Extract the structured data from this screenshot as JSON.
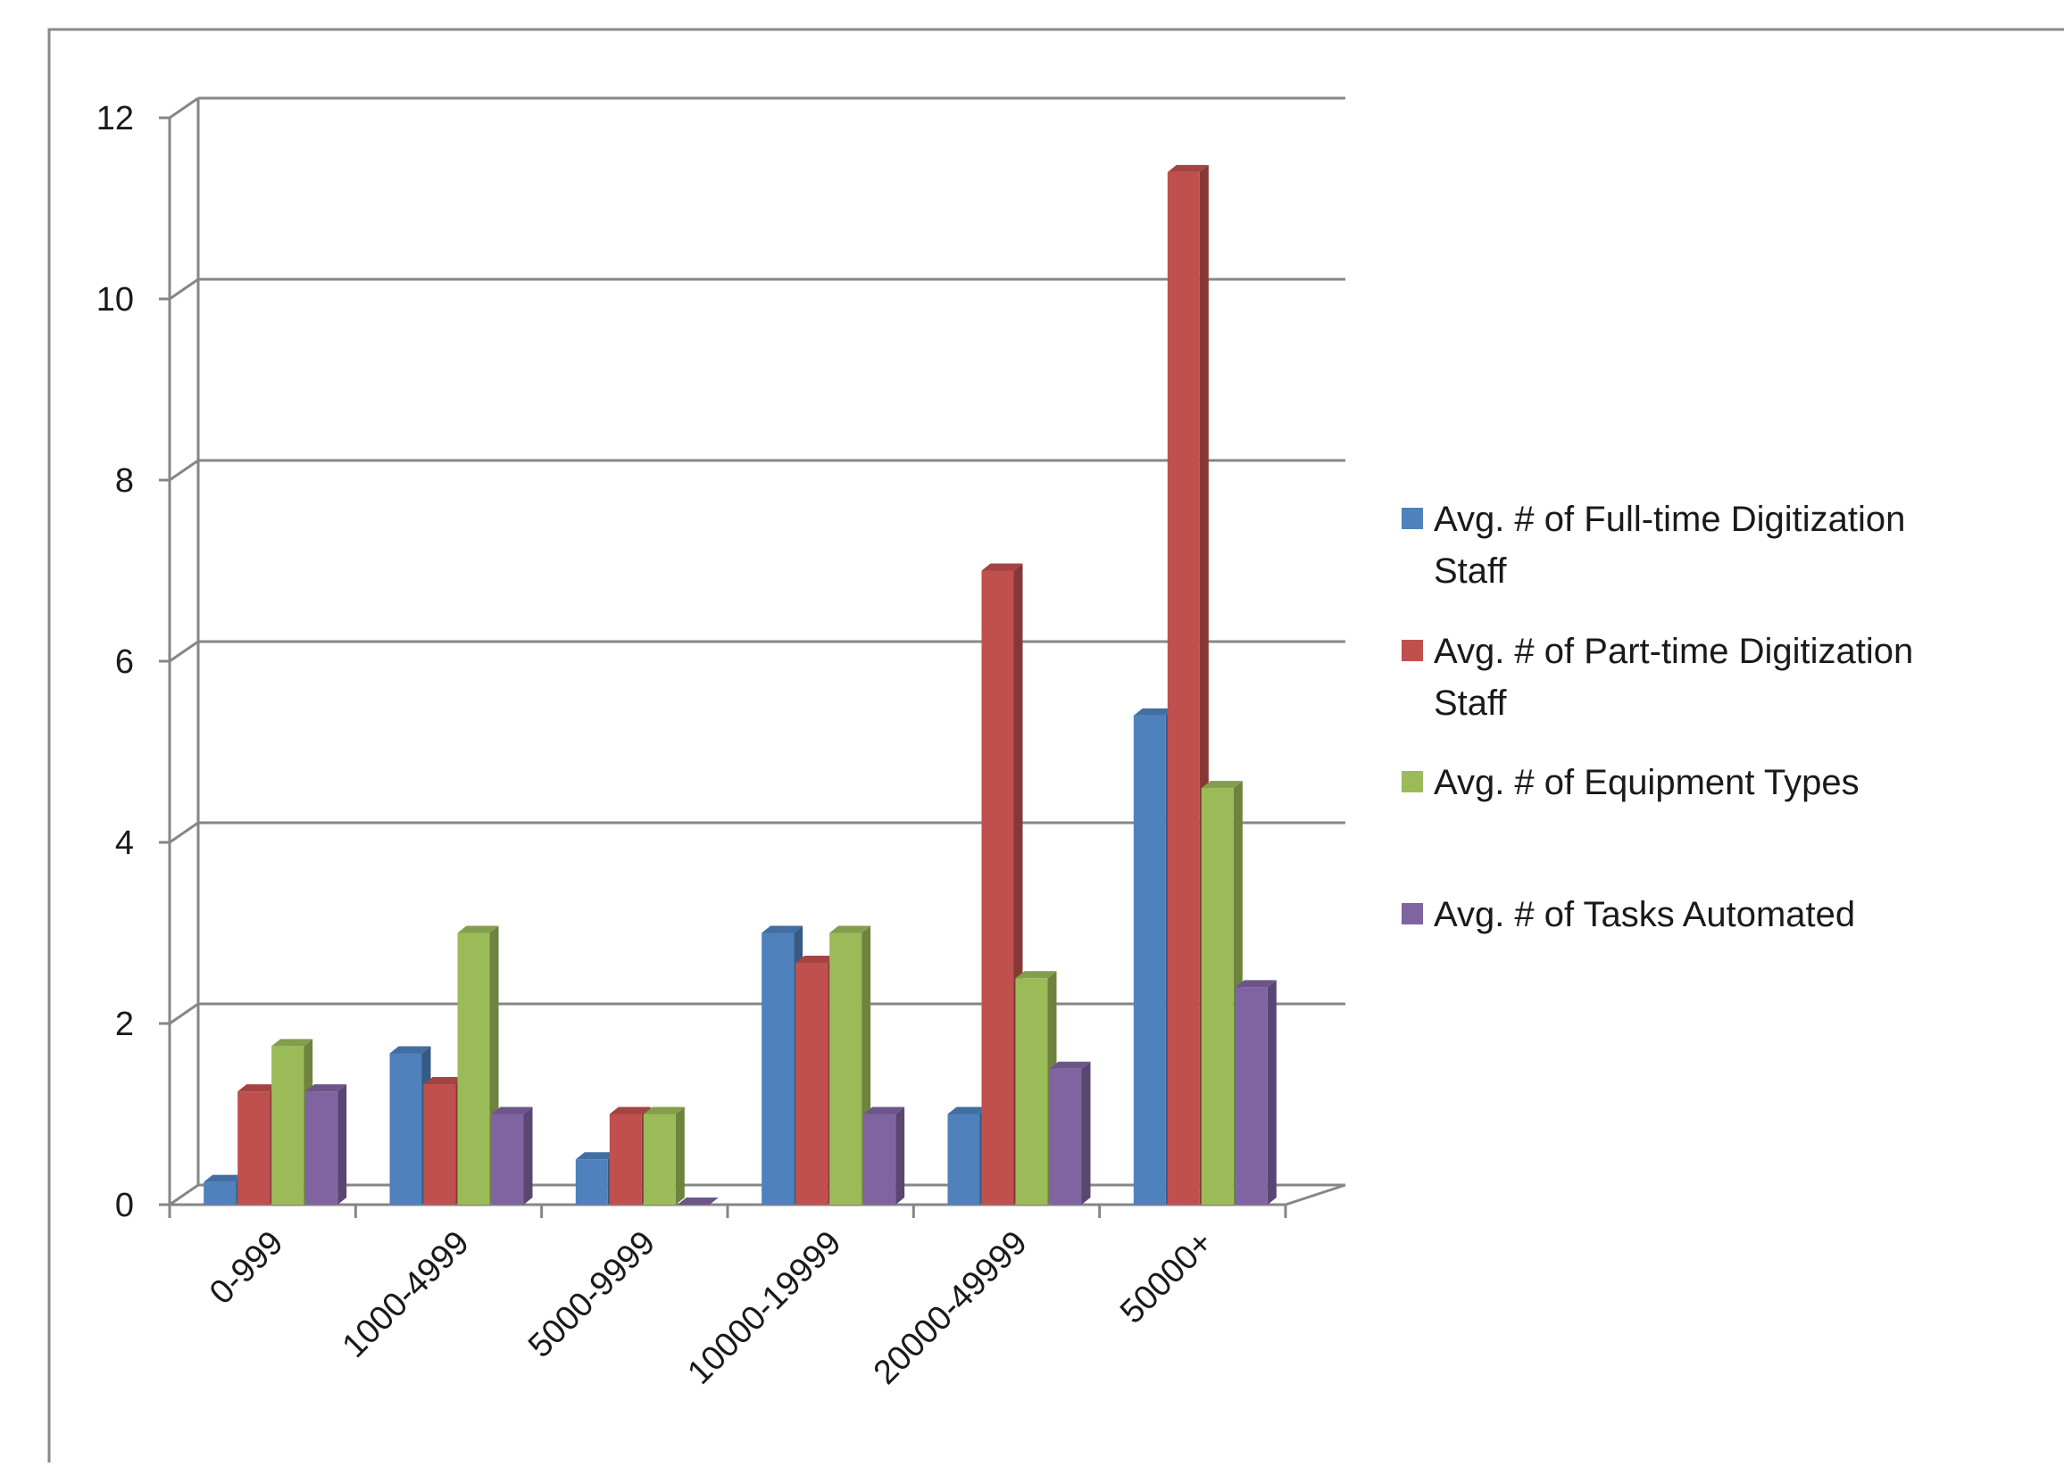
{
  "chart_data": {
    "type": "bar",
    "title": "",
    "xlabel": "",
    "ylabel": "",
    "categories": [
      "0-999",
      "1000-4999",
      "5000-9999",
      "10000-19999",
      "20000-49999",
      "50000+"
    ],
    "y_ticks": [
      "0",
      "2",
      "4",
      "6",
      "8",
      "10",
      "12"
    ],
    "ylim": [
      0,
      12
    ],
    "grid": true,
    "legend_position": "right",
    "style": "3d-clustered-column",
    "series": [
      {
        "name": "Avg. # of Full-time Digitization Staff",
        "color": "#4F81BD",
        "values": [
          0.25,
          1.67,
          0.5,
          3.0,
          1.0,
          5.4
        ]
      },
      {
        "name": "Avg. # of Part-time Digitization Staff",
        "color": "#C0504D",
        "values": [
          1.25,
          1.33,
          1.0,
          2.67,
          7.0,
          11.4
        ]
      },
      {
        "name": "Avg. # of Equipment Types",
        "color": "#9BBB59",
        "values": [
          1.75,
          3.0,
          1.0,
          3.0,
          2.5,
          4.6
        ]
      },
      {
        "name": "Avg. # of Tasks Automated",
        "color": "#8064A2",
        "values": [
          1.25,
          1.0,
          0.0,
          1.0,
          1.5,
          2.4
        ]
      }
    ]
  }
}
